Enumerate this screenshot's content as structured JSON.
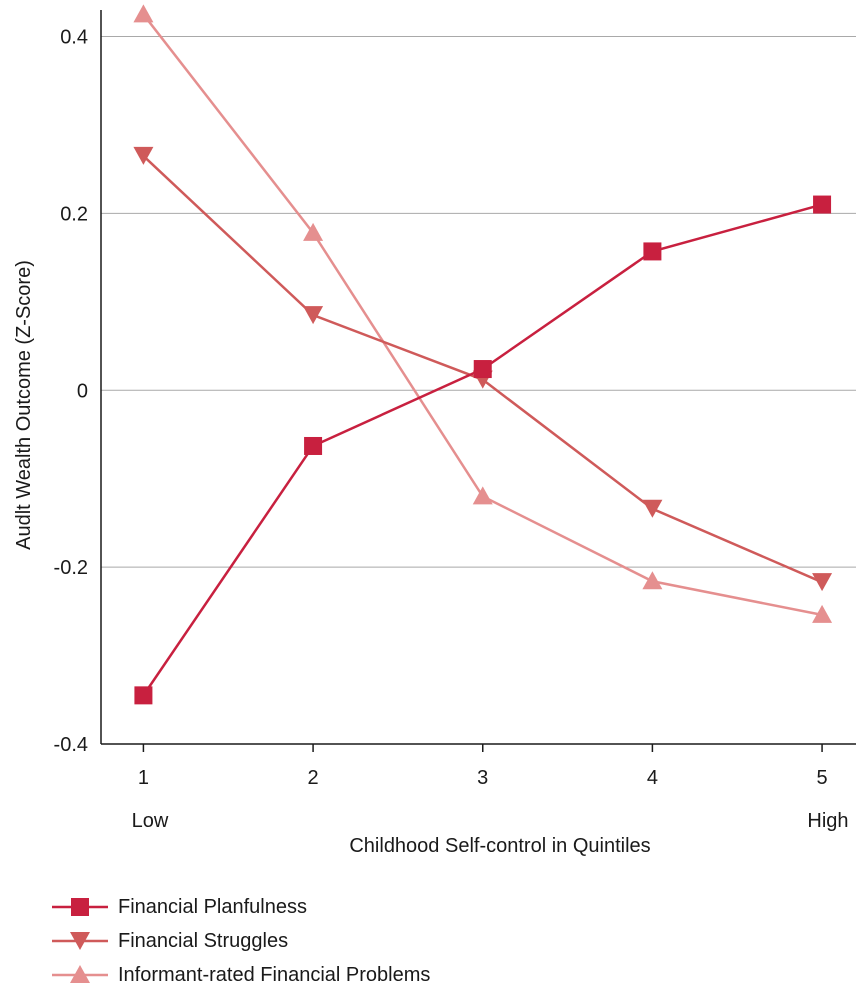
{
  "chart_data": {
    "type": "line",
    "title": "",
    "xlabel": "Childhood Self-control in Quintiles",
    "ylabel": "Audlt Wealth Outcome (Z-Score)",
    "x": [
      1,
      2,
      3,
      4,
      5
    ],
    "x_tick_labels": [
      "1",
      "2",
      "3",
      "4",
      "5"
    ],
    "x_end_labels": {
      "low": "Low",
      "high": "High"
    },
    "y_ticks": [
      0.4,
      0.2,
      0,
      -0.2,
      -0.4
    ],
    "y_tick_labels": [
      "0.4",
      "0.2",
      "0",
      "-0.2",
      "-0.4"
    ],
    "ylim": [
      -0.4,
      0.43
    ],
    "xlim": [
      0.75,
      5.2
    ],
    "grid": "horizontal",
    "legend_position": "bottom-left",
    "series": [
      {
        "name": "Financial Planfulness",
        "marker": "square",
        "color": "#c8203f",
        "values": [
          -0.345,
          -0.063,
          0.024,
          0.157,
          0.21
        ]
      },
      {
        "name": "Financial Struggles",
        "marker": "triangle-down",
        "color": "#cf5a5a",
        "values": [
          0.265,
          0.085,
          0.012,
          -0.134,
          -0.217
        ]
      },
      {
        "name": "Informant-rated Financial Problems",
        "marker": "triangle-up",
        "color": "#e58f8f",
        "values": [
          0.425,
          0.178,
          -0.12,
          -0.216,
          -0.254
        ]
      }
    ]
  }
}
